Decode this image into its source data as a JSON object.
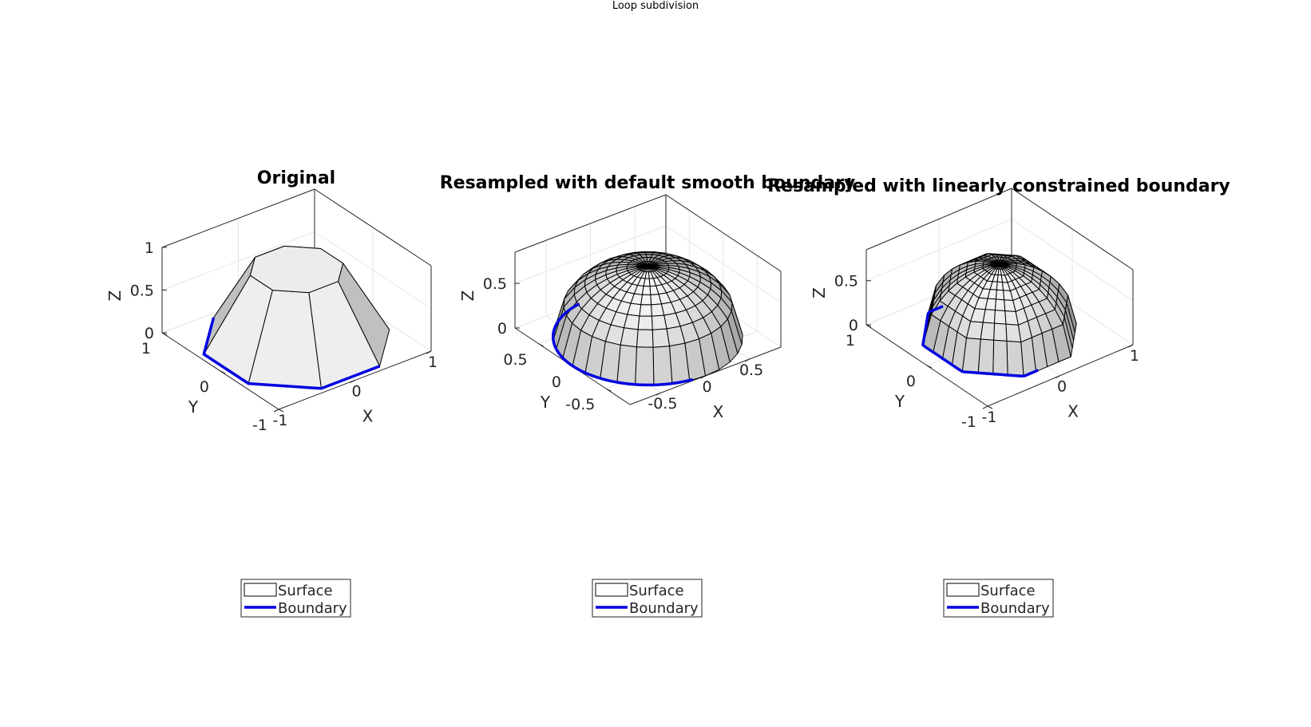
{
  "figure": {
    "title": "Loop subdivision"
  },
  "colors": {
    "boundary": "#0000e0",
    "face_light": "#f2f2f2",
    "face_dark": "#a6a6a6",
    "axes": "#262626",
    "grid": "#e6e6e6"
  },
  "chart_data": [
    {
      "type": "surface3d",
      "title": "Original",
      "xlabel": "X",
      "ylabel": "Y",
      "zlabel": "Z",
      "xlim": [
        -1,
        1
      ],
      "ylim": [
        -1,
        1
      ],
      "zlim": [
        0,
        1
      ],
      "xticks": [
        -1,
        0,
        1
      ],
      "yticks": [
        -1,
        0,
        1
      ],
      "zticks": [
        0,
        0.5,
        1
      ],
      "xtick_labels": [
        "-1",
        "0",
        "1"
      ],
      "ytick_labels": [
        "-1",
        "0",
        "1"
      ],
      "ztick_labels": [
        "0",
        "0.5",
        "1"
      ],
      "mesh": "coarse",
      "grid": true,
      "legend": {
        "location": "southoutside",
        "entries": [
          "Surface",
          "Boundary"
        ]
      }
    },
    {
      "type": "surface3d",
      "title": "Resampled with default smooth boundary",
      "xlabel": "X",
      "ylabel": "Y",
      "zlabel": "Z",
      "xlim": [
        -0.85,
        0.85
      ],
      "ylim": [
        -0.85,
        0.85
      ],
      "zlim": [
        0,
        0.85
      ],
      "xticks": [
        -0.5,
        0,
        0.5
      ],
      "yticks": [
        -0.5,
        0,
        0.5
      ],
      "zticks": [
        0,
        0.5
      ],
      "xtick_labels": [
        "-0.5",
        "0",
        "0.5"
      ],
      "ytick_labels": [
        "-0.5",
        "0",
        "0.5"
      ],
      "ztick_labels": [
        "0",
        "0.5"
      ],
      "mesh": "smooth",
      "grid": true,
      "legend": {
        "location": "southoutside",
        "entries": [
          "Surface",
          "Boundary"
        ]
      }
    },
    {
      "type": "surface3d",
      "title": "Resampled with linearly constrained boundary",
      "xlabel": "X",
      "ylabel": "Y",
      "zlabel": "Z",
      "xlim": [
        -1,
        1
      ],
      "ylim": [
        -1,
        1
      ],
      "zlim": [
        0,
        0.85
      ],
      "xticks": [
        -1,
        0,
        1
      ],
      "yticks": [
        -1,
        0,
        1
      ],
      "zticks": [
        0,
        0.5
      ],
      "xtick_labels": [
        "-1",
        "0",
        "1"
      ],
      "ytick_labels": [
        "-1",
        "0",
        "1"
      ],
      "ztick_labels": [
        "0",
        "0.5"
      ],
      "mesh": "linear",
      "grid": true,
      "legend": {
        "location": "southoutside",
        "entries": [
          "Surface",
          "Boundary"
        ]
      }
    }
  ]
}
